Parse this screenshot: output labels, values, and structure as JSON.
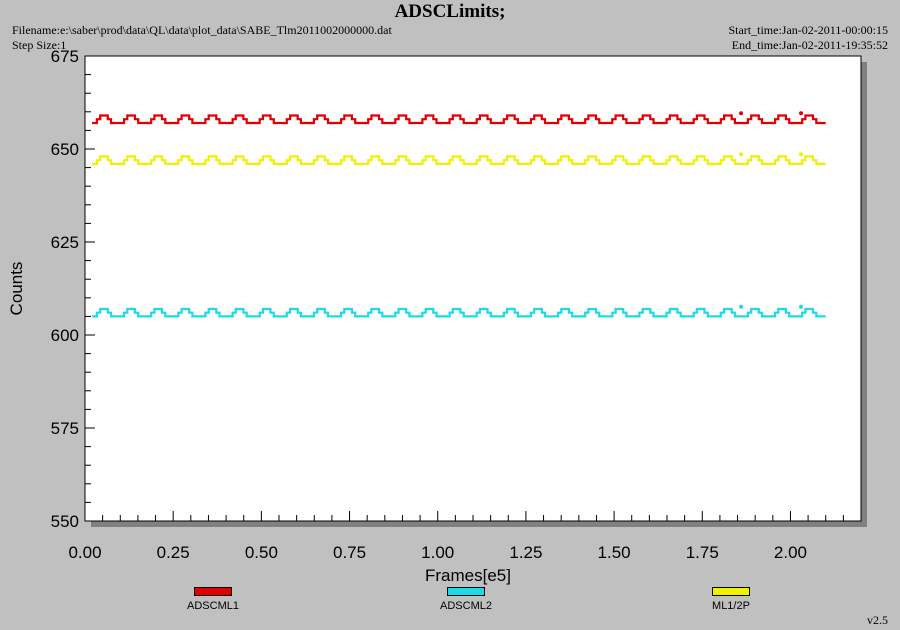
{
  "header": {
    "title": "ADSCLimits;",
    "filename": "Filename:e:\\saber\\prod\\data\\QL\\data\\plot_data\\SABE_Tlm2011002000000.dat",
    "step_size": "Step Size:1",
    "start_time": "Start_time:Jan-02-2011-00:00:15",
    "end_time": "End_time:Jan-02-2011-19:35:52"
  },
  "version": "v2.5",
  "colors": {
    "background": "#c0c0c0",
    "plot_area": "#ffffff",
    "shadow": "#808080"
  },
  "chart_data": {
    "type": "line",
    "xlabel": "Frames[e5]",
    "ylabel": "Counts",
    "xlim": [
      0.0,
      2.2
    ],
    "ylim": [
      550,
      675
    ],
    "xticks": [
      "0.00",
      "0.25",
      "0.50",
      "0.75",
      "1.00",
      "1.25",
      "1.50",
      "1.75",
      "2.00"
    ],
    "xtick_values": [
      0.0,
      0.25,
      0.5,
      0.75,
      1.0,
      1.25,
      1.5,
      1.75,
      2.0
    ],
    "yticks": [
      "550",
      "575",
      "600",
      "625",
      "650",
      "675"
    ],
    "ytick_values": [
      550,
      575,
      600,
      625,
      650,
      675
    ],
    "x_range": [
      0.02,
      2.1
    ],
    "series": [
      {
        "name": "ADSCML1",
        "color": "#e00000",
        "base": 657,
        "step": 1,
        "peak": 659,
        "spike_at": [
          1.86,
          2.03
        ]
      },
      {
        "name": "ADSCML2",
        "color": "#20d8e8",
        "base": 605,
        "step": 1,
        "peak": 607,
        "spike_at": [
          1.86,
          2.03
        ]
      },
      {
        "name": "ML1/2P",
        "color": "#f0f000",
        "base": 646,
        "step": 1,
        "peak": 648,
        "spike_at": [
          1.86,
          2.03
        ]
      }
    ],
    "cycle": 0.0769,
    "legend_placement": "bottom",
    "grid": false
  }
}
